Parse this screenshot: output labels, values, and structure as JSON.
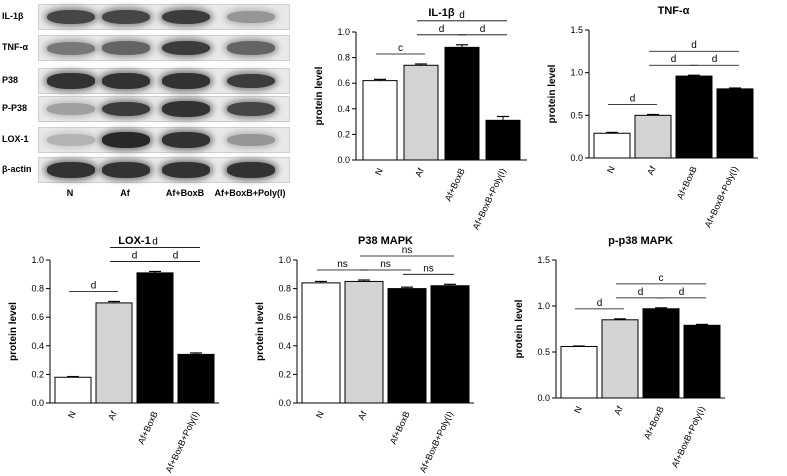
{
  "blot": {
    "rows": [
      {
        "label": "IL-1β",
        "intensity": [
          0.75,
          0.75,
          0.8,
          0.35
        ]
      },
      {
        "label": "TNF-α",
        "intensity": [
          0.5,
          0.6,
          0.8,
          0.6
        ]
      },
      {
        "label": "P38",
        "intensity": [
          0.85,
          0.85,
          0.85,
          0.8
        ]
      },
      {
        "label": "P-P38",
        "intensity": [
          0.3,
          0.8,
          0.85,
          0.75
        ]
      },
      {
        "label": "LOX-1",
        "intensity": [
          0.2,
          0.9,
          0.85,
          0.35
        ]
      },
      {
        "label": "β-actin",
        "intensity": [
          0.85,
          0.85,
          0.85,
          0.85
        ]
      }
    ],
    "lanes": [
      "N",
      "Af",
      "Af+BoxB",
      "Af+BoxB+Poly(I)"
    ]
  },
  "chart_data": [
    {
      "type": "bar",
      "title": "IL-1β",
      "ylabel": "protein level",
      "categories": [
        "N",
        "Af",
        "Af+BoxB",
        "Af+BoxB+Poly(I)"
      ],
      "values": [
        0.62,
        0.74,
        0.88,
        0.31
      ],
      "errors": [
        0.01,
        0.01,
        0.02,
        0.03
      ],
      "ylim": [
        0,
        1.0
      ],
      "yticks": [
        "0.0",
        "0.2",
        "0.4",
        "0.6",
        "0.8",
        "1.0"
      ],
      "bar_colors": [
        "#ffffff",
        "#d3d3d3",
        "#000000",
        "#000000"
      ],
      "significance": [
        {
          "from": 0,
          "to": 1,
          "label": "c"
        },
        {
          "from": 1,
          "to": 2,
          "label": "d"
        },
        {
          "from": 2,
          "to": 3,
          "label": "d"
        },
        {
          "from": 1,
          "to": 3,
          "label": "d"
        }
      ]
    },
    {
      "type": "bar",
      "title": "TNF-α",
      "ylabel": "protein level",
      "categories": [
        "N",
        "Af",
        "Af+BoxB",
        "Af+BoxB+Poly(I)"
      ],
      "values": [
        0.29,
        0.5,
        0.96,
        0.81
      ],
      "errors": [
        0.01,
        0.01,
        0.01,
        0.01
      ],
      "ylim": [
        0,
        1.5
      ],
      "yticks": [
        "0.0",
        "0.5",
        "1.0",
        "1.5"
      ],
      "bar_colors": [
        "#ffffff",
        "#d3d3d3",
        "#000000",
        "#000000"
      ],
      "significance": [
        {
          "from": 0,
          "to": 1,
          "label": "d"
        },
        {
          "from": 1,
          "to": 2,
          "label": "d"
        },
        {
          "from": 2,
          "to": 3,
          "label": "d"
        },
        {
          "from": 1,
          "to": 3,
          "label": "d"
        }
      ]
    },
    {
      "type": "bar",
      "title": "LOX-1",
      "ylabel": "protein level",
      "categories": [
        "N",
        "Af",
        "Af+BoxB",
        "Af+BoxB+Poly(I)"
      ],
      "values": [
        0.18,
        0.7,
        0.91,
        0.34
      ],
      "errors": [
        0.005,
        0.01,
        0.01,
        0.01
      ],
      "ylim": [
        0,
        1.0
      ],
      "yticks": [
        "0.0",
        "0.2",
        "0.4",
        "0.6",
        "0.8",
        "1.0"
      ],
      "bar_colors": [
        "#ffffff",
        "#d3d3d3",
        "#000000",
        "#000000"
      ],
      "significance": [
        {
          "from": 0,
          "to": 1,
          "label": "d"
        },
        {
          "from": 1,
          "to": 2,
          "label": "d"
        },
        {
          "from": 2,
          "to": 3,
          "label": "d"
        },
        {
          "from": 1,
          "to": 3,
          "label": "d"
        }
      ]
    },
    {
      "type": "bar",
      "title": "P38 MAPK",
      "ylabel": "protein level",
      "categories": [
        "N",
        "Af",
        "Af+BoxB",
        "Af+BoxB+Poly(I)"
      ],
      "values": [
        0.84,
        0.85,
        0.8,
        0.82
      ],
      "errors": [
        0.01,
        0.01,
        0.01,
        0.01
      ],
      "ylim": [
        0,
        1.0
      ],
      "yticks": [
        "0.0",
        "0.2",
        "0.4",
        "0.6",
        "0.8",
        "1.0"
      ],
      "bar_colors": [
        "#ffffff",
        "#d3d3d3",
        "#000000",
        "#000000"
      ],
      "significance": [
        {
          "from": 0,
          "to": 1,
          "label": "ns"
        },
        {
          "from": 1,
          "to": 2,
          "label": "ns"
        },
        {
          "from": 2,
          "to": 3,
          "label": "ns"
        },
        {
          "from": 1,
          "to": 3,
          "label": "ns"
        }
      ]
    },
    {
      "type": "bar",
      "title": "p-p38 MAPK",
      "ylabel": "protein level",
      "categories": [
        "N",
        "Af",
        "Af+BoxB",
        "Af+BoxB+Poly(I)"
      ],
      "values": [
        0.56,
        0.85,
        0.97,
        0.79
      ],
      "errors": [
        0.005,
        0.01,
        0.01,
        0.01
      ],
      "ylim": [
        0,
        1.5
      ],
      "yticks": [
        "0.0",
        "0.5",
        "1.0",
        "1.5"
      ],
      "bar_colors": [
        "#ffffff",
        "#d3d3d3",
        "#000000",
        "#000000"
      ],
      "significance": [
        {
          "from": 0,
          "to": 1,
          "label": "d"
        },
        {
          "from": 1,
          "to": 2,
          "label": "d"
        },
        {
          "from": 2,
          "to": 3,
          "label": "d"
        },
        {
          "from": 1,
          "to": 3,
          "label": "c"
        }
      ]
    }
  ]
}
